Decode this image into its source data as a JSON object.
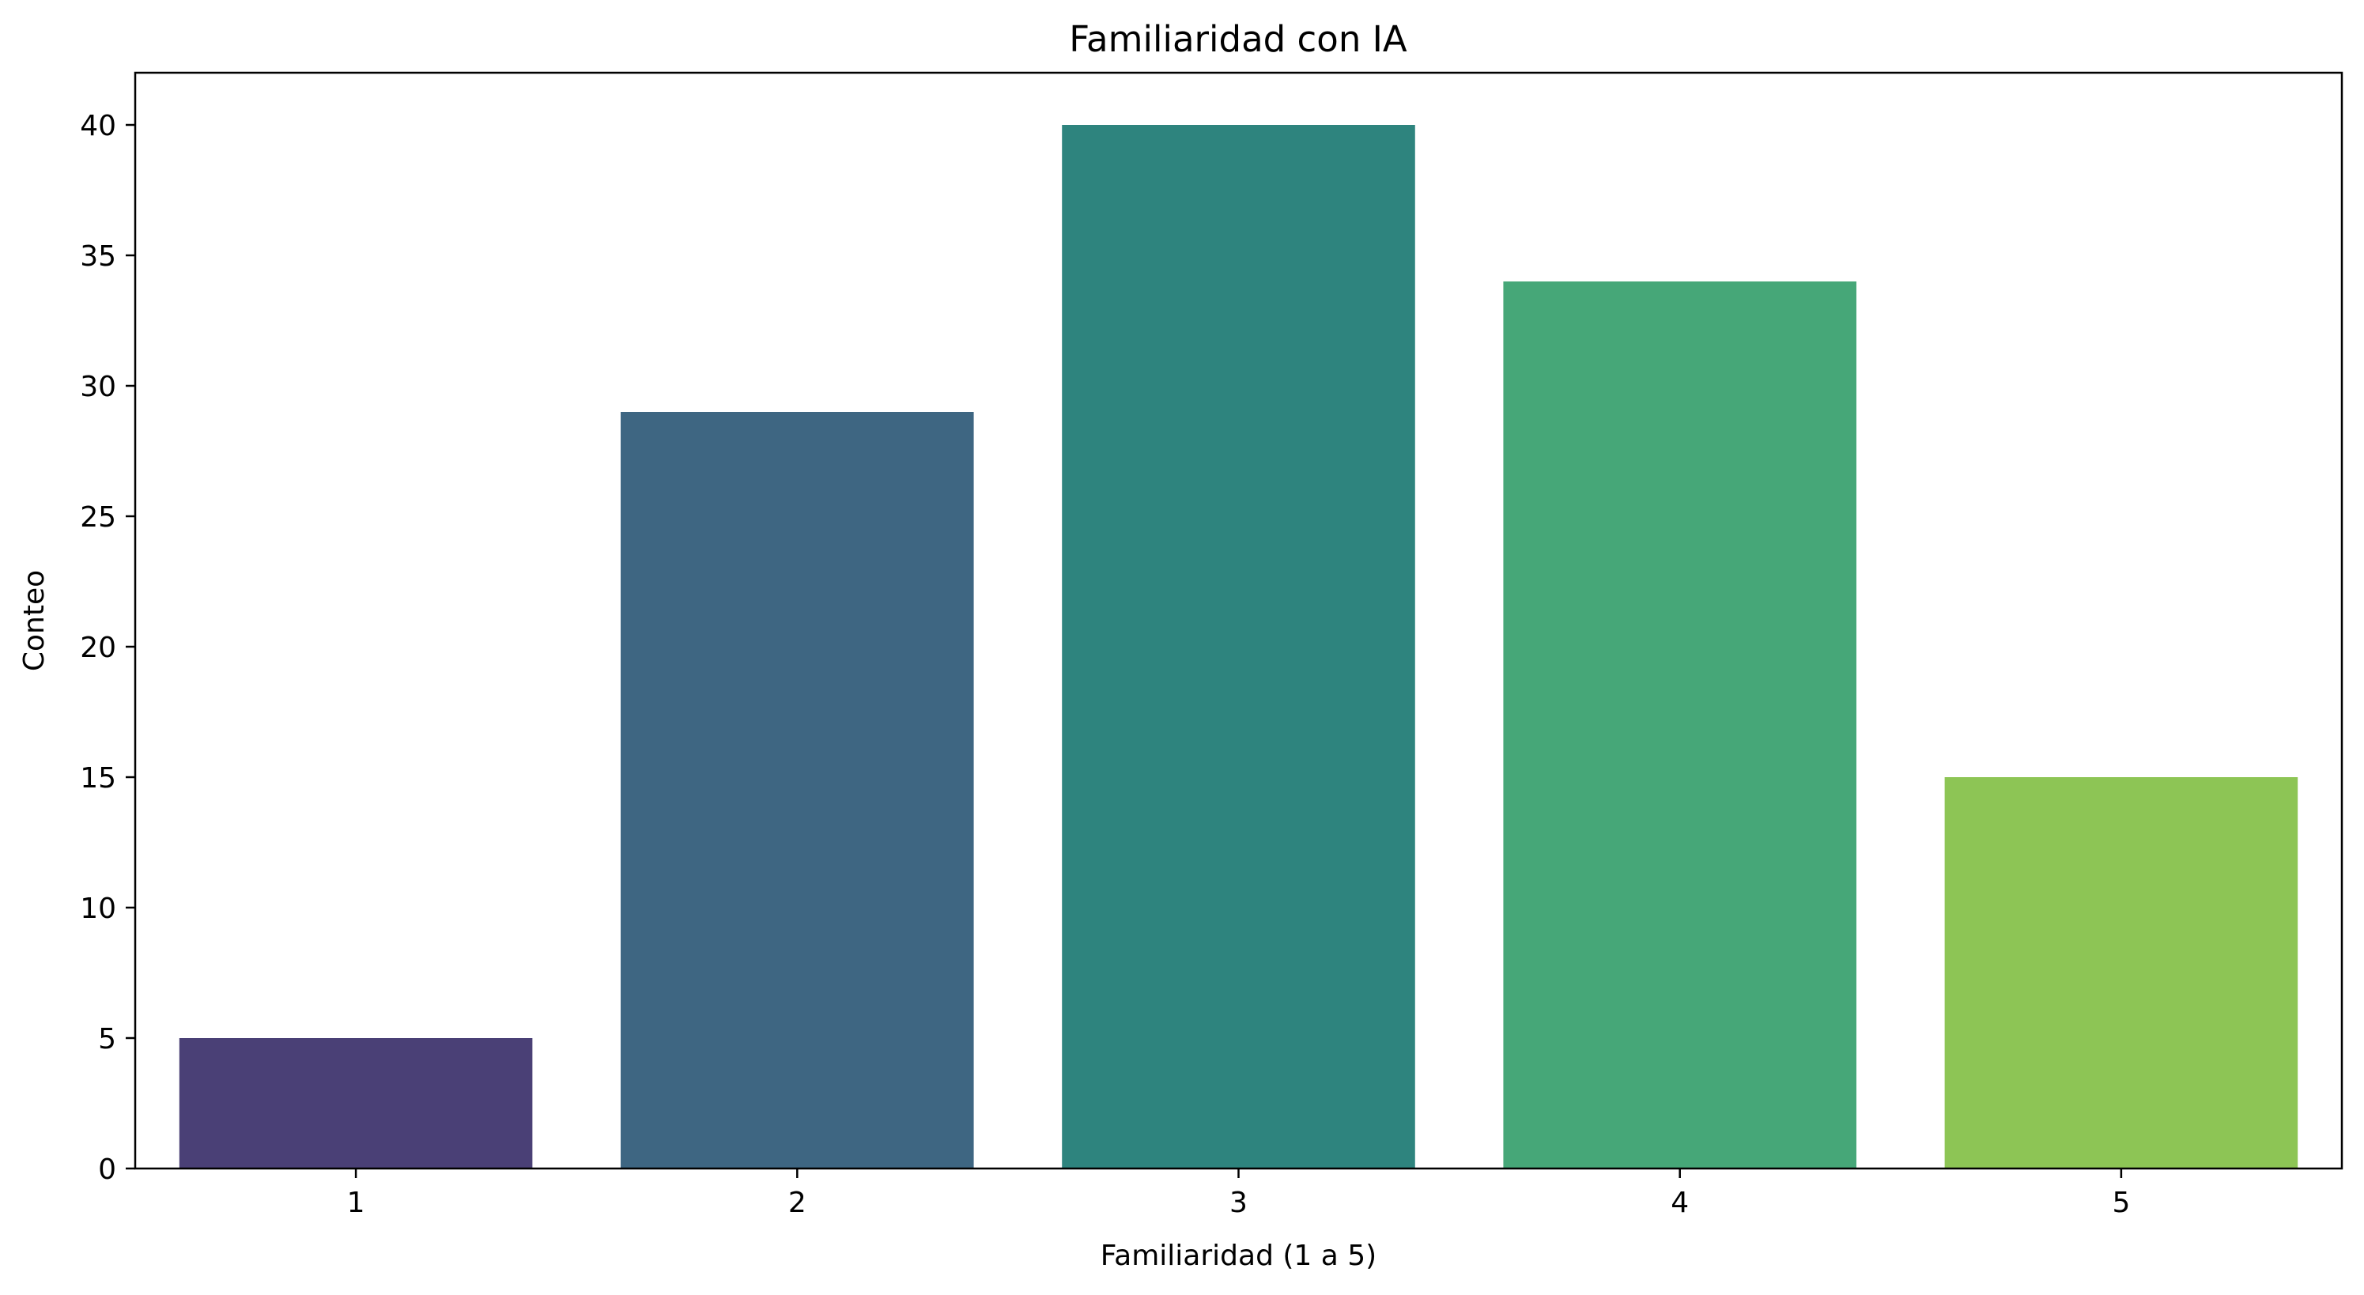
{
  "chart_data": {
    "type": "bar",
    "title": "Familiaridad con IA",
    "xlabel": "Familiaridad (1 a 5)",
    "ylabel": "Conteo",
    "categories": [
      "1",
      "2",
      "3",
      "4",
      "5"
    ],
    "values": [
      5,
      29,
      40,
      34,
      15
    ],
    "colors": [
      "#4a4076",
      "#3e6682",
      "#2e847e",
      "#46a778",
      "#8dc555"
    ],
    "ylim": [
      0,
      42
    ],
    "yticks": [
      0,
      5,
      10,
      15,
      20,
      25,
      30,
      35,
      40
    ],
    "grid": false,
    "legend": "none"
  }
}
